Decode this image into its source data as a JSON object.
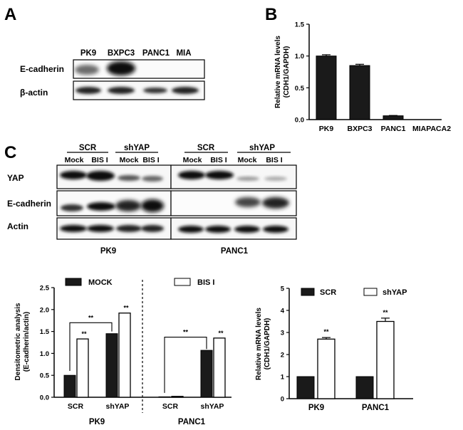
{
  "panels": {
    "A": "A",
    "B": "B",
    "C": "C"
  },
  "blot_a": {
    "lanes": [
      "PK9",
      "BXPC3",
      "PANC1",
      "MIA"
    ],
    "rows": [
      "E-cadherin",
      "β-actin"
    ]
  },
  "blot_c": {
    "groups": [
      "SCR",
      "shYAP",
      "SCR",
      "shYAP"
    ],
    "lanes": [
      "Mock",
      "BIS I",
      "Mock",
      "BIS I",
      "Mock",
      "BIS I",
      "Mock",
      "BIS I"
    ],
    "rows": [
      "YAP",
      "E-cadherin",
      "Actin"
    ],
    "cells": [
      "PK9",
      "PANC1"
    ]
  },
  "colors": {
    "bar_dark": "#1a1a1a",
    "bar_light": "#ffffff",
    "axis": "#000000"
  },
  "chart_data": [
    {
      "type": "bar",
      "panel": "B",
      "categories": [
        "PK9",
        "BXPC3",
        "PANC1",
        "MIAPACA2"
      ],
      "values": [
        1.0,
        0.85,
        0.06,
        0.0
      ],
      "error": [
        0.02,
        0.02,
        0.005,
        0.0
      ],
      "ylabel": "Relative mRNA levels (CDH1/GAPDH)",
      "ylabel_lines": [
        "Relative mRNA levels",
        "(CDH1/GAPDH)"
      ],
      "ylim": [
        0,
        1.5
      ],
      "yticks": [
        "0.0",
        "0.5",
        "1.0",
        "1.5"
      ],
      "ytick_values": [
        0,
        0.5,
        1.0,
        1.5
      ]
    },
    {
      "type": "bar",
      "panel": "C-left",
      "groups": [
        "PK9",
        "PANC1"
      ],
      "categories": [
        "SCR",
        "shYAP",
        "SCR",
        "shYAP"
      ],
      "series": [
        {
          "name": "MOCK",
          "values": [
            0.5,
            1.45,
            0.01,
            1.07
          ]
        },
        {
          "name": "BIS I",
          "values": [
            1.33,
            1.92,
            0.02,
            1.35
          ]
        }
      ],
      "significance": [
        "**",
        "**",
        "**",
        "**",
        "**"
      ],
      "ylabel": "Densitometric analysis (E-cadherin/actin)",
      "ylabel_lines": [
        "Densitometric analysis",
        "(E-cadherin/actin)"
      ],
      "ylim": [
        0,
        2.5
      ],
      "yticks": [
        "0.0",
        "0.5",
        "1.0",
        "1.5",
        "2.0",
        "2.5"
      ],
      "ytick_values": [
        0,
        0.5,
        1.0,
        1.5,
        2.0,
        2.5
      ],
      "legend": "top"
    },
    {
      "type": "bar",
      "panel": "C-right",
      "categories": [
        "PK9",
        "PANC1"
      ],
      "series": [
        {
          "name": "SCR",
          "values": [
            1.0,
            1.0
          ]
        },
        {
          "name": "shYAP",
          "values": [
            2.7,
            3.5
          ]
        }
      ],
      "error": [
        [
          0.01,
          0.01
        ],
        [
          0.07,
          0.15
        ]
      ],
      "significance": [
        "**",
        "**"
      ],
      "ylabel": "Relative mRNA levels (CDH1/GAPDH)",
      "ylabel_lines": [
        "Relative mRNA levels",
        "(CDH1/GAPDH)"
      ],
      "ylim": [
        0,
        5
      ],
      "yticks": [
        "0",
        "1",
        "2",
        "3",
        "4",
        "5"
      ],
      "ytick_values": [
        0,
        1,
        2,
        3,
        4,
        5
      ],
      "legend": "top"
    }
  ]
}
